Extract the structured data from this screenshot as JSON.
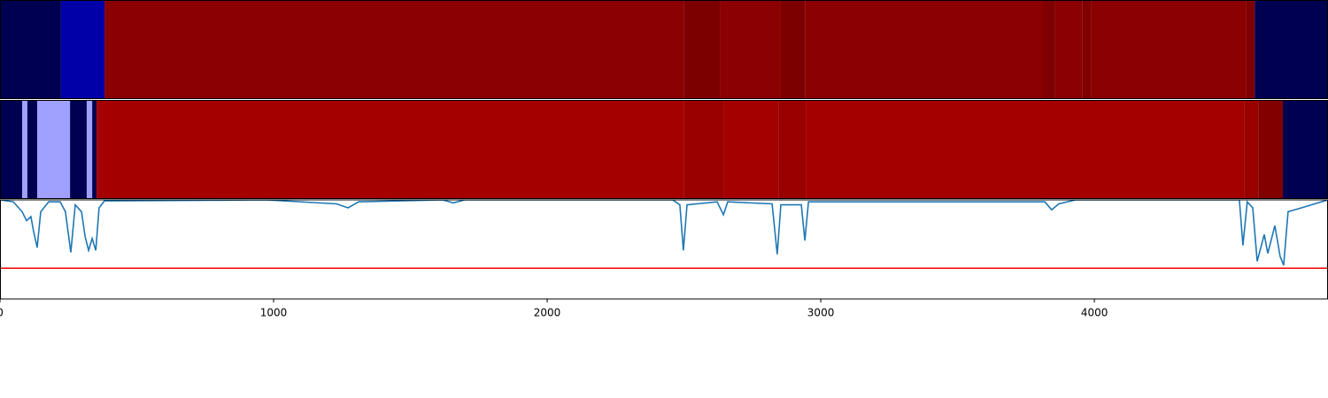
{
  "chart_data": [
    {
      "type": "heatmap",
      "xlim": [
        0,
        4854
      ],
      "segments": [
        {
          "start": 0,
          "end": 223,
          "color": "#000050"
        },
        {
          "start": 223,
          "end": 382,
          "color": "#0000a8"
        },
        {
          "start": 382,
          "end": 2501,
          "color": "#8b0000"
        },
        {
          "start": 2501,
          "end": 2631,
          "color": "#7d0000"
        },
        {
          "start": 2631,
          "end": 2854,
          "color": "#8b0000"
        },
        {
          "start": 2854,
          "end": 2942,
          "color": "#7d0000"
        },
        {
          "start": 2942,
          "end": 3812,
          "color": "#8b0000"
        },
        {
          "start": 3812,
          "end": 3857,
          "color": "#7f0000"
        },
        {
          "start": 3857,
          "end": 3955,
          "color": "#8b0000"
        },
        {
          "start": 3955,
          "end": 3987,
          "color": "#7f0000"
        },
        {
          "start": 3987,
          "end": 4556,
          "color": "#8b0000"
        },
        {
          "start": 4556,
          "end": 4586,
          "color": "#7f0000"
        },
        {
          "start": 4586,
          "end": 4854,
          "color": "#000050"
        }
      ]
    },
    {
      "type": "heatmap",
      "xlim": [
        0,
        4854
      ],
      "segments": [
        {
          "start": 0,
          "end": 81,
          "color": "#000050"
        },
        {
          "start": 81,
          "end": 100,
          "color": "#a0a0ff"
        },
        {
          "start": 100,
          "end": 136,
          "color": "#000050"
        },
        {
          "start": 136,
          "end": 256,
          "color": "#a0a0ff"
        },
        {
          "start": 256,
          "end": 317,
          "color": "#000050"
        },
        {
          "start": 317,
          "end": 337,
          "color": "#a0a0ff"
        },
        {
          "start": 337,
          "end": 353,
          "color": "#000050"
        },
        {
          "start": 353,
          "end": 2501,
          "color": "#a50000"
        },
        {
          "start": 2501,
          "end": 2644,
          "color": "#990000"
        },
        {
          "start": 2644,
          "end": 2845,
          "color": "#a50000"
        },
        {
          "start": 2845,
          "end": 2945,
          "color": "#990000"
        },
        {
          "start": 2945,
          "end": 4547,
          "color": "#a50000"
        },
        {
          "start": 4547,
          "end": 4599,
          "color": "#990000"
        },
        {
          "start": 4599,
          "end": 4689,
          "color": "#820000"
        },
        {
          "start": 4689,
          "end": 4854,
          "color": "#000050"
        }
      ]
    },
    {
      "type": "line",
      "xlim": [
        0,
        4854
      ],
      "ylim": [
        0,
        1
      ],
      "xticks": [
        0,
        1000,
        2000,
        3000,
        4000
      ],
      "color": "#1f77b4",
      "threshold": {
        "value": 0.31,
        "color": "#ff0000"
      },
      "x": [
        0,
        49,
        81,
        97,
        113,
        123,
        136,
        149,
        178,
        220,
        239,
        259,
        275,
        298,
        311,
        324,
        337,
        350,
        362,
        382,
        971,
        1230,
        1272,
        1311,
        1618,
        1657,
        1699,
        2459,
        2485,
        2498,
        2511,
        2621,
        2644,
        2660,
        2822,
        2841,
        2854,
        2929,
        2942,
        2955,
        3819,
        3844,
        3870,
        3932,
        4530,
        4543,
        4559,
        4579,
        4595,
        4621,
        4634,
        4660,
        4679,
        4692,
        4708,
        4757,
        4805,
        4854
      ],
      "values": [
        1.0,
        0.98,
        0.88,
        0.79,
        0.83,
        0.68,
        0.52,
        0.88,
        0.98,
        0.98,
        0.88,
        0.47,
        0.95,
        0.88,
        0.63,
        0.49,
        0.61,
        0.49,
        0.92,
        0.99,
        1.0,
        0.96,
        0.92,
        0.98,
        1.0,
        0.97,
        1.0,
        1.0,
        0.95,
        0.49,
        0.95,
        0.98,
        0.85,
        0.98,
        0.96,
        0.45,
        0.95,
        0.95,
        0.59,
        0.98,
        0.98,
        0.9,
        0.96,
        1.0,
        1.0,
        0.54,
        0.98,
        0.92,
        0.38,
        0.65,
        0.46,
        0.74,
        0.43,
        0.34,
        0.88,
        0.92,
        0.96,
        1.0
      ]
    }
  ]
}
